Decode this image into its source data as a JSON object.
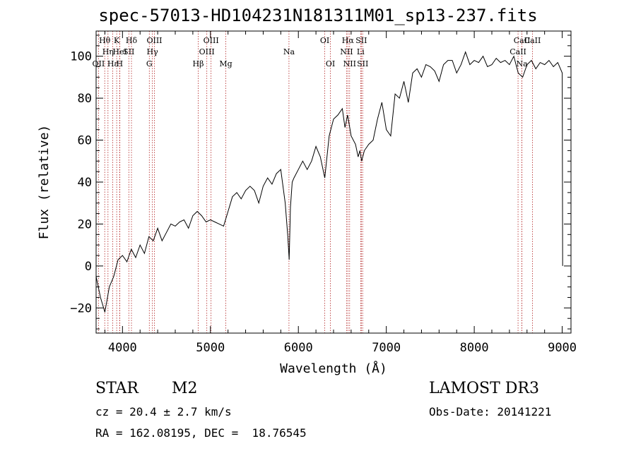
{
  "chart_data": {
    "type": "line",
    "title": "spec-57013-HD104231N181311M01_sp13-237.fits",
    "xlabel": "Wavelength (Å)",
    "ylabel": "Flux (relative)",
    "xlim": [
      3700,
      9100
    ],
    "ylim": [
      -32,
      112
    ],
    "xticks": [
      "4000",
      "5000",
      "6000",
      "7000",
      "8000",
      "9000"
    ],
    "yticks": [
      "−20",
      "0",
      "20",
      "40",
      "60",
      "80",
      "100"
    ],
    "series": [
      {
        "name": "flux",
        "x": [
          3700,
          3750,
          3800,
          3850,
          3900,
          3950,
          4000,
          4050,
          4100,
          4150,
          4200,
          4250,
          4300,
          4350,
          4400,
          4450,
          4500,
          4550,
          4600,
          4650,
          4700,
          4750,
          4800,
          4850,
          4900,
          4950,
          5000,
          5050,
          5100,
          5150,
          5200,
          5250,
          5300,
          5350,
          5400,
          5450,
          5500,
          5550,
          5600,
          5650,
          5700,
          5750,
          5800,
          5850,
          5880,
          5895,
          5910,
          5930,
          5950,
          6000,
          6050,
          6100,
          6150,
          6200,
          6250,
          6300,
          6330,
          6350,
          6400,
          6450,
          6500,
          6530,
          6560,
          6600,
          6650,
          6680,
          6700,
          6720,
          6750,
          6800,
          6850,
          6900,
          6950,
          7000,
          7050,
          7100,
          7150,
          7200,
          7250,
          7300,
          7350,
          7400,
          7450,
          7500,
          7550,
          7600,
          7650,
          7700,
          7750,
          7800,
          7850,
          7900,
          7950,
          8000,
          8050,
          8100,
          8150,
          8200,
          8250,
          8300,
          8350,
          8400,
          8450,
          8500,
          8550,
          8600,
          8650,
          8700,
          8750,
          8800,
          8850,
          8900,
          8950,
          9000,
          9005
        ],
        "y": [
          -5,
          -15,
          -22,
          -10,
          -5,
          3,
          5,
          2,
          8,
          4,
          10,
          6,
          14,
          12,
          18,
          12,
          16,
          20,
          19,
          21,
          22,
          18,
          24,
          26,
          24,
          21,
          22,
          21,
          20,
          19,
          26,
          33,
          35,
          32,
          36,
          38,
          36,
          30,
          38,
          42,
          39,
          44,
          46,
          30,
          14,
          3,
          28,
          40,
          42,
          46,
          50,
          46,
          50,
          57,
          52,
          42,
          54,
          62,
          70,
          72,
          75,
          66,
          72,
          62,
          58,
          52,
          55,
          50,
          55,
          58,
          60,
          70,
          78,
          65,
          62,
          82,
          80,
          88,
          78,
          92,
          94,
          90,
          96,
          95,
          93,
          88,
          96,
          98,
          98,
          92,
          96,
          102,
          96,
          98,
          97,
          100,
          95,
          96,
          99,
          97,
          98,
          96,
          100,
          92,
          90,
          96,
          98,
          94,
          97,
          96,
          98,
          95,
          97,
          92,
          0
        ]
      }
    ],
    "emission_lines": [
      {
        "label": "Hθ",
        "x": 3798,
        "row": 1
      },
      {
        "label": "OII",
        "x": 3727,
        "row": 3
      },
      {
        "label": "Hη",
        "x": 3835,
        "row": 2
      },
      {
        "label": "Hε",
        "x": 3889,
        "row": 3
      },
      {
        "label": "HeI",
        "x": 3970,
        "row": 2
      },
      {
        "label": "K",
        "x": 3934,
        "row": 1
      },
      {
        "label": "H",
        "x": 3968,
        "row": 3
      },
      {
        "label": "SII",
        "x": 4072,
        "row": 2
      },
      {
        "label": "Hδ",
        "x": 4102,
        "row": 1
      },
      {
        "label": "OIII",
        "x": 4363,
        "row": 1
      },
      {
        "label": "Hγ",
        "x": 4340,
        "row": 2
      },
      {
        "label": "G",
        "x": 4305,
        "row": 3
      },
      {
        "label": "Hβ",
        "x": 4861,
        "row": 3
      },
      {
        "label": "OIII",
        "x": 5007,
        "row": 1
      },
      {
        "label": "OIII",
        "x": 4959,
        "row": 2
      },
      {
        "label": "Mg",
        "x": 5175,
        "row": 3
      },
      {
        "label": "Na",
        "x": 5893,
        "row": 2
      },
      {
        "label": "OI",
        "x": 6300,
        "row": 1
      },
      {
        "label": "OI",
        "x": 6364,
        "row": 3
      },
      {
        "label": "Hα",
        "x": 6563,
        "row": 1
      },
      {
        "label": "NII",
        "x": 6548,
        "row": 2
      },
      {
        "label": "NII",
        "x": 6583,
        "row": 3
      },
      {
        "label": "SII",
        "x": 6716,
        "row": 1
      },
      {
        "label": "Li",
        "x": 6708,
        "row": 2
      },
      {
        "label": "SII",
        "x": 6731,
        "row": 3
      },
      {
        "label": "CaII",
        "x": 8542,
        "row": 1
      },
      {
        "label": "CaII",
        "x": 8498,
        "row": 2
      },
      {
        "label": "CaII",
        "x": 8662,
        "row": 1
      },
      {
        "label": "Na",
        "x": 8542,
        "row": 3
      }
    ],
    "line_color": "#b22222"
  },
  "info": {
    "object_class": "STAR",
    "subclass": "M2",
    "survey": "LAMOST DR3",
    "redshift": "cz = 20.4 ± 2.7 km/s",
    "obs_date": "Obs-Date: 20141221",
    "coords": "RA = 162.08195, DEC =  18.76545"
  }
}
